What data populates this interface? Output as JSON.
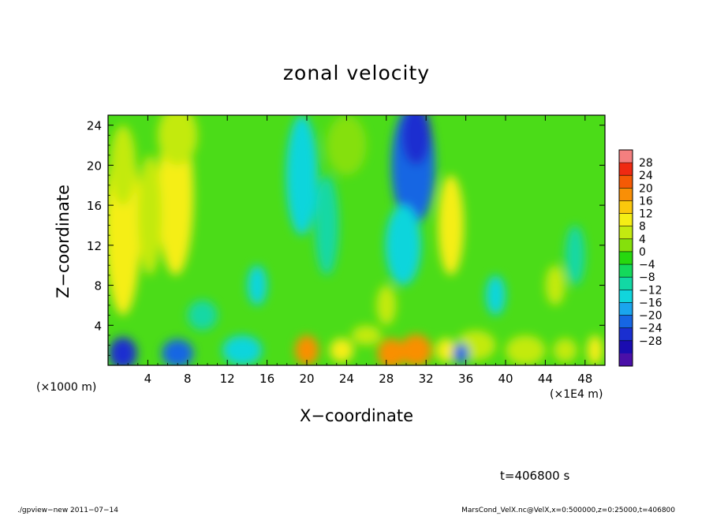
{
  "chart_data": {
    "type": "heatmap",
    "title": "zonal velocity",
    "xlabel": "X−coordinate",
    "ylabel": "Z−coordinate",
    "x_unit_note": "(×1000 m)",
    "x_unit_note_right": "(×1E4 m)",
    "xlim": [
      0,
      50
    ],
    "ylim": [
      0,
      25
    ],
    "x_ticks": [
      "4",
      "8",
      "12",
      "16",
      "20",
      "24",
      "28",
      "32",
      "36",
      "40",
      "44",
      "48"
    ],
    "x_tick_values": [
      4,
      8,
      12,
      16,
      20,
      24,
      28,
      32,
      36,
      40,
      44,
      48
    ],
    "y_ticks": [
      "4",
      "8",
      "12",
      "16",
      "20",
      "24"
    ],
    "y_tick_values": [
      4,
      8,
      12,
      16,
      20,
      24
    ],
    "colorbar": {
      "labels": [
        "28",
        "24",
        "20",
        "16",
        "12",
        "8",
        "4",
        "0",
        "−4",
        "−8",
        "−12",
        "−16",
        "−20",
        "−24",
        "−28"
      ],
      "values": [
        28,
        24,
        20,
        16,
        12,
        8,
        4,
        0,
        -4,
        -8,
        -12,
        -16,
        -20,
        -24,
        -28
      ],
      "colors": [
        "#f47f7f",
        "#ef2a12",
        "#f55a05",
        "#f98f06",
        "#fbc80c",
        "#f5ee15",
        "#c3ea10",
        "#85e00c",
        "#27d80f",
        "#14d95c",
        "#12d8a4",
        "#11d5dc",
        "#1aa5ee",
        "#1666e3",
        "#1a2fd0",
        "#1a0cb0",
        "#4a0fa8"
      ]
    },
    "features": [
      {
        "x": 1.5,
        "z": 15,
        "value": 16
      },
      {
        "x": 7,
        "z": 18,
        "value": 14
      },
      {
        "x": 31,
        "z": 20,
        "value": -20
      },
      {
        "x": 31,
        "z": 1,
        "value": 20
      },
      {
        "x": 1.5,
        "z": 1,
        "value": -22
      },
      {
        "x": 7,
        "z": 1,
        "value": -20
      },
      {
        "x": 20,
        "z": 20,
        "value": -10
      },
      {
        "x": 34.5,
        "z": 14,
        "value": 12
      }
    ]
  },
  "annotation": {
    "time": "t=406800 s"
  },
  "footer": {
    "left": "./gpview−new   2011−07−14",
    "right": "MarsCond_VelX.nc@VelX,x=0:500000,z=0:25000,t=406800"
  }
}
